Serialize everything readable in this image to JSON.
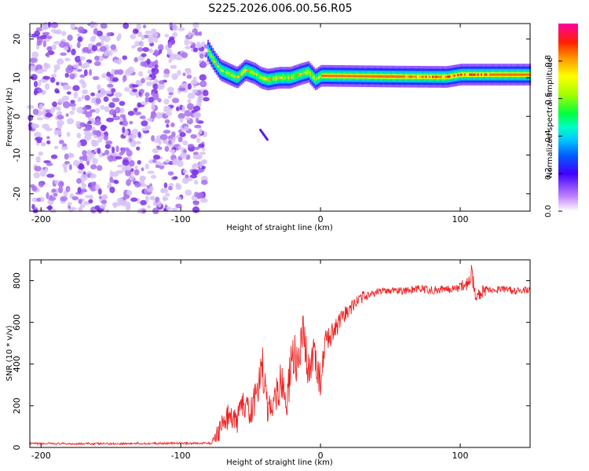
{
  "figure_title": "S225.2026.006.00.56.R05",
  "colors": {
    "snr_line": "#ee2222",
    "axis": "#000000",
    "background": "#ffffff"
  },
  "chart_data": [
    {
      "type": "heatmap",
      "title": "",
      "xlabel": "Height of straight line (km)",
      "ylabel": "Frequency (Hz)",
      "xlim": [
        -208,
        150
      ],
      "ylim": [
        -24.5,
        24
      ],
      "xticks": [
        -200,
        -100,
        0,
        100
      ],
      "yticks": [
        -20,
        -10,
        0,
        10,
        20
      ],
      "colorbar": {
        "label": "Normalized spectral amplitude",
        "range": [
          0.0,
          1.0
        ],
        "ticks": [
          0.0,
          0.2,
          0.4,
          0.6,
          0.8
        ]
      },
      "features": [
        {
          "name": "noise",
          "x_range": [
            -208,
            -81
          ],
          "y_range": [
            -24.5,
            24
          ],
          "amplitude": 0.15
        },
        {
          "name": "signal_band",
          "ridge": [
            [
              -81,
              17
            ],
            [
              -76,
              14
            ],
            [
              -72,
              12
            ],
            [
              -66,
              11
            ],
            [
              -60,
              10
            ],
            [
              -54,
              12
            ],
            [
              -47,
              11
            ],
            [
              -43,
              10
            ],
            [
              -38,
              9.5
            ],
            [
              -30,
              10
            ],
            [
              -22,
              10
            ],
            [
              -14,
              11
            ],
            [
              -9,
              11.5
            ],
            [
              -4,
              9.5
            ],
            [
              0,
              10.5
            ],
            [
              50,
              10.3
            ],
            [
              90,
              10.2
            ],
            [
              100,
              10.8
            ],
            [
              150,
              10.8
            ]
          ]
        },
        {
          "name": "streak",
          "points": [
            [
              -43,
              -3.5
            ],
            [
              -38,
              -6
            ]
          ]
        }
      ]
    },
    {
      "type": "line",
      "title": "",
      "xlabel": "Height of straight line (km)",
      "ylabel": "SNR (10 * v/v)",
      "xlim": [
        -208,
        150
      ],
      "ylim": [
        0,
        900
      ],
      "xticks": [
        -200,
        -100,
        0,
        100
      ],
      "yticks": [
        0,
        200,
        400,
        600,
        800
      ],
      "series": [
        {
          "name": "SNR",
          "x": [
            -208,
            -150,
            -100,
            -78,
            -72,
            -66,
            -60,
            -56,
            -50,
            -44,
            -42,
            -38,
            -32,
            -28,
            -24,
            -20,
            -16,
            -12,
            -8,
            -4,
            0,
            4,
            10,
            16,
            20,
            26,
            32,
            40,
            50,
            60,
            70,
            80,
            90,
            100,
            106,
            108,
            110,
            120,
            130,
            140,
            150
          ],
          "y": [
            18,
            18,
            20,
            20,
            90,
            150,
            120,
            210,
            160,
            300,
            420,
            180,
            250,
            330,
            210,
            470,
            380,
            540,
            320,
            480,
            300,
            520,
            560,
            620,
            660,
            700,
            730,
            745,
            755,
            750,
            760,
            755,
            760,
            770,
            780,
            860,
            740,
            755,
            760,
            750,
            755
          ],
          "noise": [
            5,
            5,
            5,
            5,
            60,
            60,
            60,
            60,
            70,
            80,
            100,
            80,
            90,
            110,
            90,
            120,
            110,
            120,
            100,
            110,
            90,
            70,
            50,
            45,
            40,
            30,
            25,
            18,
            18,
            18,
            20,
            20,
            22,
            25,
            50,
            60,
            50,
            20,
            18,
            18,
            18
          ]
        }
      ]
    }
  ]
}
